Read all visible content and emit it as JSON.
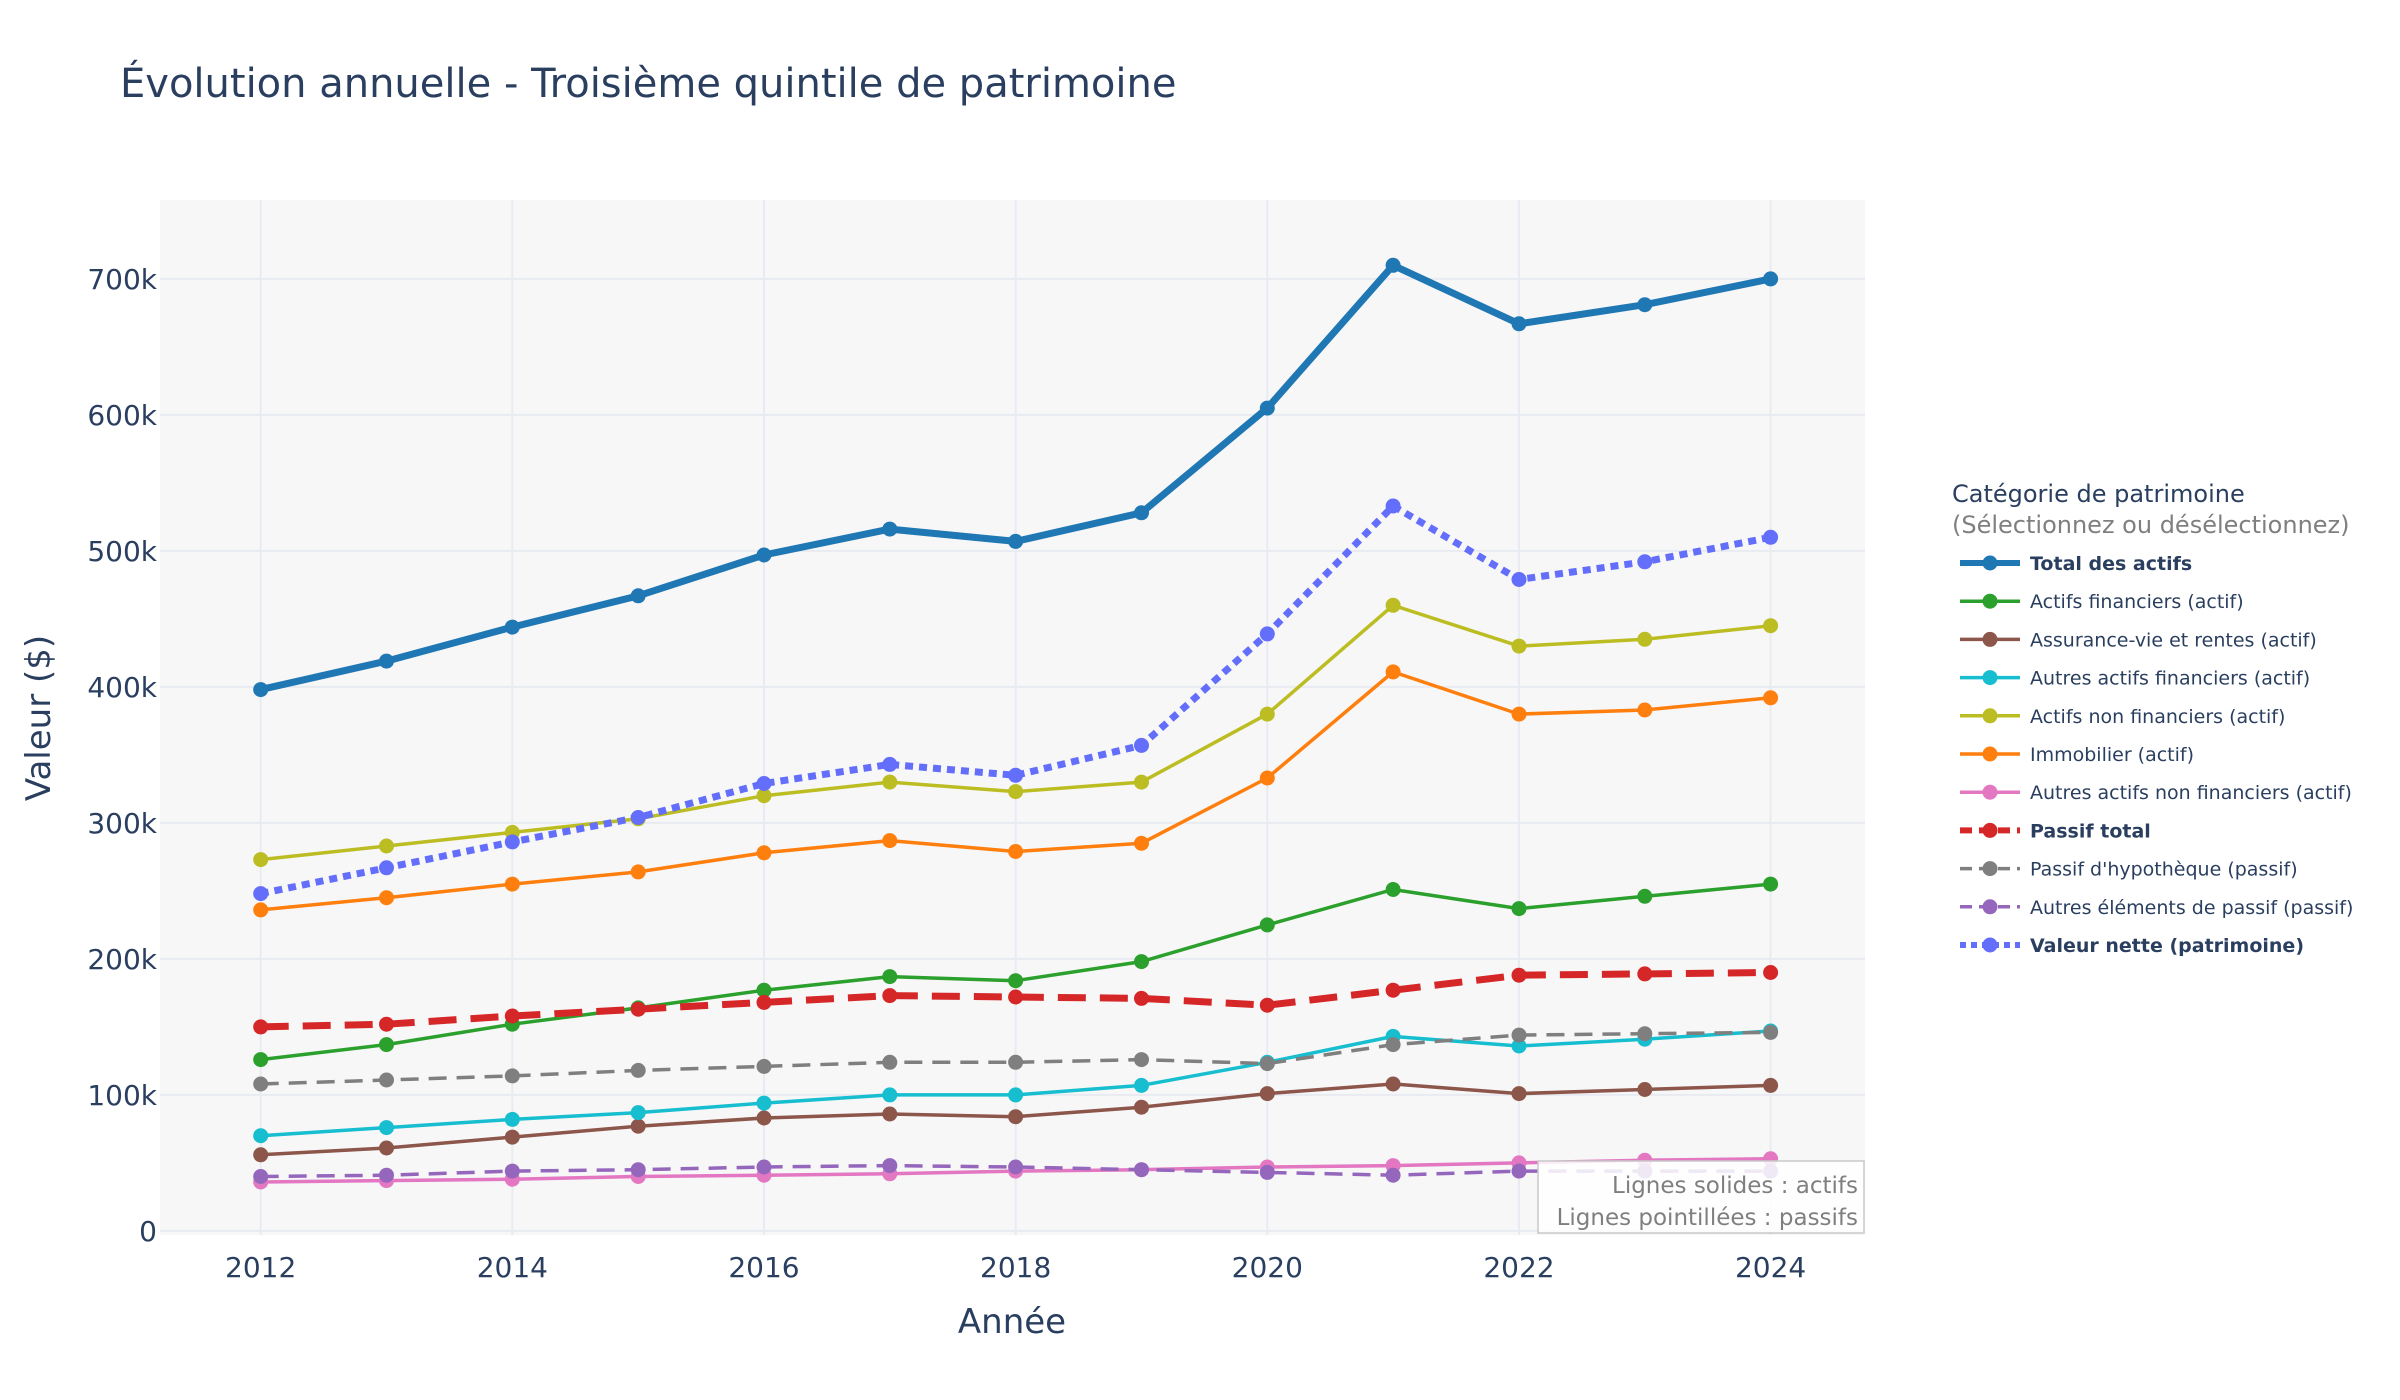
{
  "chart_data": {
    "type": "line",
    "title": "Évolution annuelle - Troisième quintile de patrimoine",
    "xlabel": "Année",
    "ylabel": "Valeur ($)",
    "xlim": [
      2011.2,
      2024.75
    ],
    "ylim": [
      -3000,
      758000
    ],
    "x_ticks": [
      2012,
      2014,
      2016,
      2018,
      2020,
      2022,
      2024
    ],
    "y_ticks": [
      0,
      100000,
      200000,
      300000,
      400000,
      500000,
      600000,
      700000
    ],
    "y_tick_labels": [
      "0",
      "100k",
      "200k",
      "300k",
      "400k",
      "500k",
      "600k",
      "700k"
    ],
    "x": [
      2012,
      2013,
      2014,
      2015,
      2016,
      2017,
      2018,
      2019,
      2020,
      2021,
      2022,
      2023,
      2024
    ],
    "legend_title": "Catégorie de patrimoine",
    "legend_subtitle": "(Sélectionnez ou désélectionnez)",
    "legend_position": "right",
    "annotation": [
      "Lignes solides : actifs",
      "Lignes pointillées : passifs"
    ],
    "series": [
      {
        "name": "Total des actifs",
        "color": "#1f77b4",
        "dash": "solid",
        "bold": true,
        "width": 7,
        "values": [
          398000,
          419000,
          444000,
          467000,
          497000,
          516000,
          507000,
          528000,
          605000,
          710000,
          667000,
          681000,
          700000
        ]
      },
      {
        "name": "Actifs financiers (actif)",
        "color": "#2ca02c",
        "dash": "solid",
        "bold": false,
        "width": 3.5,
        "values": [
          126000,
          137000,
          152000,
          164000,
          177000,
          187000,
          184000,
          198000,
          225000,
          251000,
          237000,
          246000,
          255000
        ]
      },
      {
        "name": "Assurance-vie et rentes (actif)",
        "color": "#8c564b",
        "dash": "solid",
        "bold": false,
        "width": 3.5,
        "values": [
          56000,
          61000,
          69000,
          77000,
          83000,
          86000,
          84000,
          91000,
          101000,
          108000,
          101000,
          104000,
          107000
        ]
      },
      {
        "name": "Autres actifs financiers (actif)",
        "color": "#17becf",
        "dash": "solid",
        "bold": false,
        "width": 3.5,
        "values": [
          70000,
          76000,
          82000,
          87000,
          94000,
          100000,
          100000,
          107000,
          124000,
          143000,
          136000,
          141000,
          147000
        ]
      },
      {
        "name": "Actifs non financiers (actif)",
        "color": "#bcbd22",
        "dash": "solid",
        "bold": false,
        "width": 3.5,
        "values": [
          273000,
          283000,
          293000,
          303000,
          320000,
          330000,
          323000,
          330000,
          380000,
          460000,
          430000,
          435000,
          445000
        ]
      },
      {
        "name": "Immobilier (actif)",
        "color": "#ff7f0e",
        "dash": "solid",
        "bold": false,
        "width": 3.5,
        "values": [
          236000,
          245000,
          255000,
          264000,
          278000,
          287000,
          279000,
          285000,
          333000,
          411000,
          380000,
          383000,
          392000
        ]
      },
      {
        "name": "Autres actifs non financiers (actif)",
        "color": "#e377c2",
        "dash": "solid",
        "bold": false,
        "width": 3.5,
        "values": [
          36000,
          37000,
          38000,
          40000,
          41000,
          42000,
          44000,
          45000,
          47000,
          48000,
          50000,
          52000,
          53000
        ]
      },
      {
        "name": "Passif total",
        "color": "#d62728",
        "dash": "dash",
        "bold": true,
        "width": 7,
        "values": [
          150000,
          152000,
          158000,
          163000,
          168000,
          173000,
          172000,
          171000,
          166000,
          177000,
          188000,
          189000,
          190000
        ]
      },
      {
        "name": "Passif d'hypothèque (passif)",
        "color": "#7f7f7f",
        "dash": "dash",
        "bold": false,
        "width": 3.5,
        "values": [
          108000,
          111000,
          114000,
          118000,
          121000,
          124000,
          124000,
          126000,
          123000,
          137000,
          144000,
          145000,
          146000
        ]
      },
      {
        "name": "Autres éléments de passif (passif)",
        "color": "#9467bd",
        "dash": "dash",
        "bold": false,
        "width": 3.5,
        "values": [
          40000,
          41000,
          44000,
          45000,
          47000,
          48000,
          47000,
          45000,
          43000,
          41000,
          44000,
          44000,
          44000
        ]
      },
      {
        "name": "Valeur nette (patrimoine)",
        "color": "#636efa",
        "dash": "dot",
        "bold": true,
        "width": 7,
        "values": [
          248000,
          267000,
          286000,
          304000,
          329000,
          343000,
          335000,
          357000,
          439000,
          533000,
          479000,
          492000,
          510000
        ]
      }
    ]
  }
}
